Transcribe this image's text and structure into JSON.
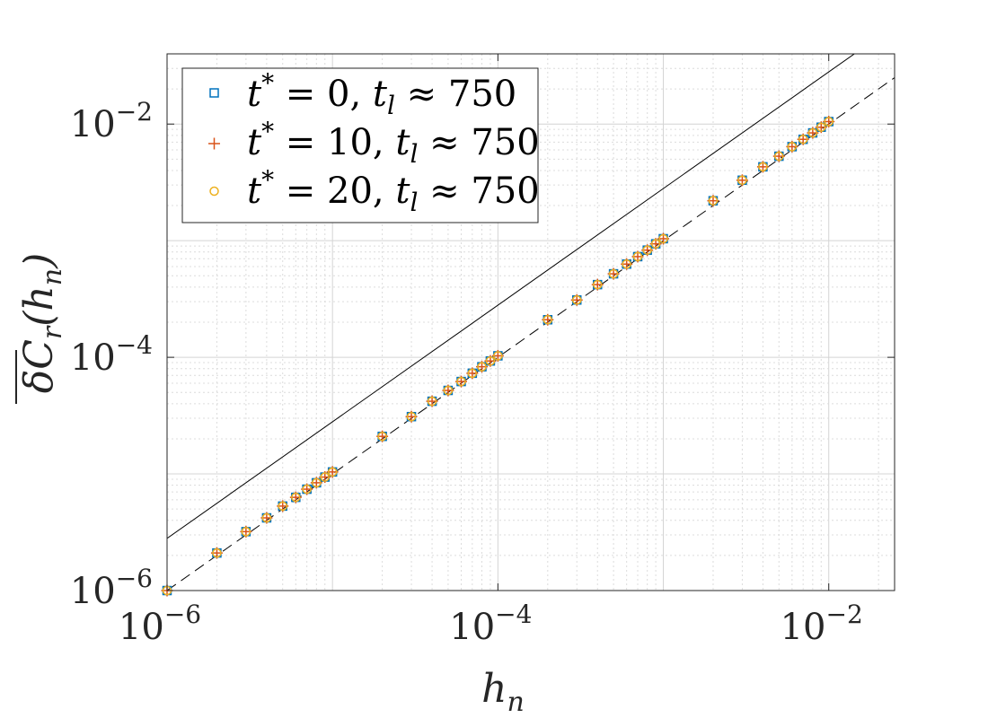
{
  "chart_data": {
    "type": "scatter",
    "title": "",
    "xlabel": "h_n",
    "ylabel": "δC_r(h_n)",
    "xscale": "log",
    "yscale": "log",
    "xlim": [
      1e-06,
      0.025
    ],
    "ylim": [
      1e-06,
      0.04
    ],
    "x_ticks": [
      {
        "base": "10",
        "exp": "−6"
      },
      {
        "base": "10",
        "exp": "−4"
      },
      {
        "base": "10",
        "exp": "−2"
      }
    ],
    "y_ticks": [
      {
        "base": "10",
        "exp": "−6"
      },
      {
        "base": "10",
        "exp": "−4"
      },
      {
        "base": "10",
        "exp": "−2"
      }
    ],
    "grid": true,
    "legend_position": "top-left",
    "x": [
      1e-06,
      2e-06,
      3e-06,
      4e-06,
      5e-06,
      6e-06,
      7e-06,
      8e-06,
      9e-06,
      1e-05,
      2e-05,
      3e-05,
      4e-05,
      5e-05,
      6e-05,
      7e-05,
      8e-05,
      9e-05,
      0.0001,
      0.0002,
      0.0003,
      0.0004,
      0.0005,
      0.0006,
      0.0007,
      0.0008,
      0.0009,
      0.001,
      0.002,
      0.003,
      0.004,
      0.005,
      0.006,
      0.007,
      0.008,
      0.009,
      0.01
    ],
    "series": [
      {
        "name": "t* = 0, t_l ≈ 750",
        "marker": "square",
        "color": "#0072BD",
        "values": [
          1e-06,
          2.1e-06,
          3.2e-06,
          4.2e-06,
          5.3e-06,
          6.3e-06,
          7.4e-06,
          8.4e-06,
          9.4e-06,
          1.04e-05,
          2.1e-05,
          3.1e-05,
          4.2e-05,
          5.2e-05,
          6.2e-05,
          7.3e-05,
          8.3e-05,
          9.3e-05,
          0.000103,
          0.00021,
          0.00031,
          0.00042,
          0.00052,
          0.00063,
          0.00073,
          0.00083,
          0.00094,
          0.00104,
          0.0022,
          0.0033,
          0.0043,
          0.0053,
          0.0064,
          0.0074,
          0.0084,
          0.0094,
          0.0105
        ]
      },
      {
        "name": "t* = 10, t_l ≈ 750",
        "marker": "plus",
        "color": "#D95319",
        "values": [
          1e-06,
          2.1e-06,
          3.2e-06,
          4.2e-06,
          5.3e-06,
          6.3e-06,
          7.4e-06,
          8.4e-06,
          9.4e-06,
          1.04e-05,
          2.1e-05,
          3.1e-05,
          4.2e-05,
          5.2e-05,
          6.2e-05,
          7.3e-05,
          8.3e-05,
          9.3e-05,
          0.000103,
          0.00021,
          0.00031,
          0.00042,
          0.00052,
          0.00063,
          0.00073,
          0.00083,
          0.00094,
          0.00104,
          0.0022,
          0.0033,
          0.0043,
          0.0053,
          0.0064,
          0.0074,
          0.0084,
          0.0094,
          0.0105
        ]
      },
      {
        "name": "t* = 20, t_l ≈ 750",
        "marker": "circle",
        "color": "#EDB120",
        "values": [
          1e-06,
          2.1e-06,
          3.2e-06,
          4.2e-06,
          5.3e-06,
          6.3e-06,
          7.4e-06,
          8.4e-06,
          9.4e-06,
          1.04e-05,
          2.1e-05,
          3.1e-05,
          4.2e-05,
          5.2e-05,
          6.2e-05,
          7.3e-05,
          8.3e-05,
          9.3e-05,
          0.000103,
          0.00021,
          0.00031,
          0.00042,
          0.00052,
          0.00063,
          0.00073,
          0.00083,
          0.00094,
          0.00104,
          0.0022,
          0.0033,
          0.0043,
          0.0053,
          0.0064,
          0.0074,
          0.0084,
          0.0094,
          0.0105
        ]
      }
    ],
    "reference_lines": [
      {
        "style": "solid",
        "color": "#000000",
        "points": [
          [
            1e-06,
            2.8e-06
          ],
          [
            0.025,
            0.07
          ]
        ]
      },
      {
        "style": "dashed",
        "color": "#000000",
        "points": [
          [
            1e-06,
            1e-06
          ],
          [
            0.025,
            0.025
          ]
        ]
      }
    ]
  }
}
